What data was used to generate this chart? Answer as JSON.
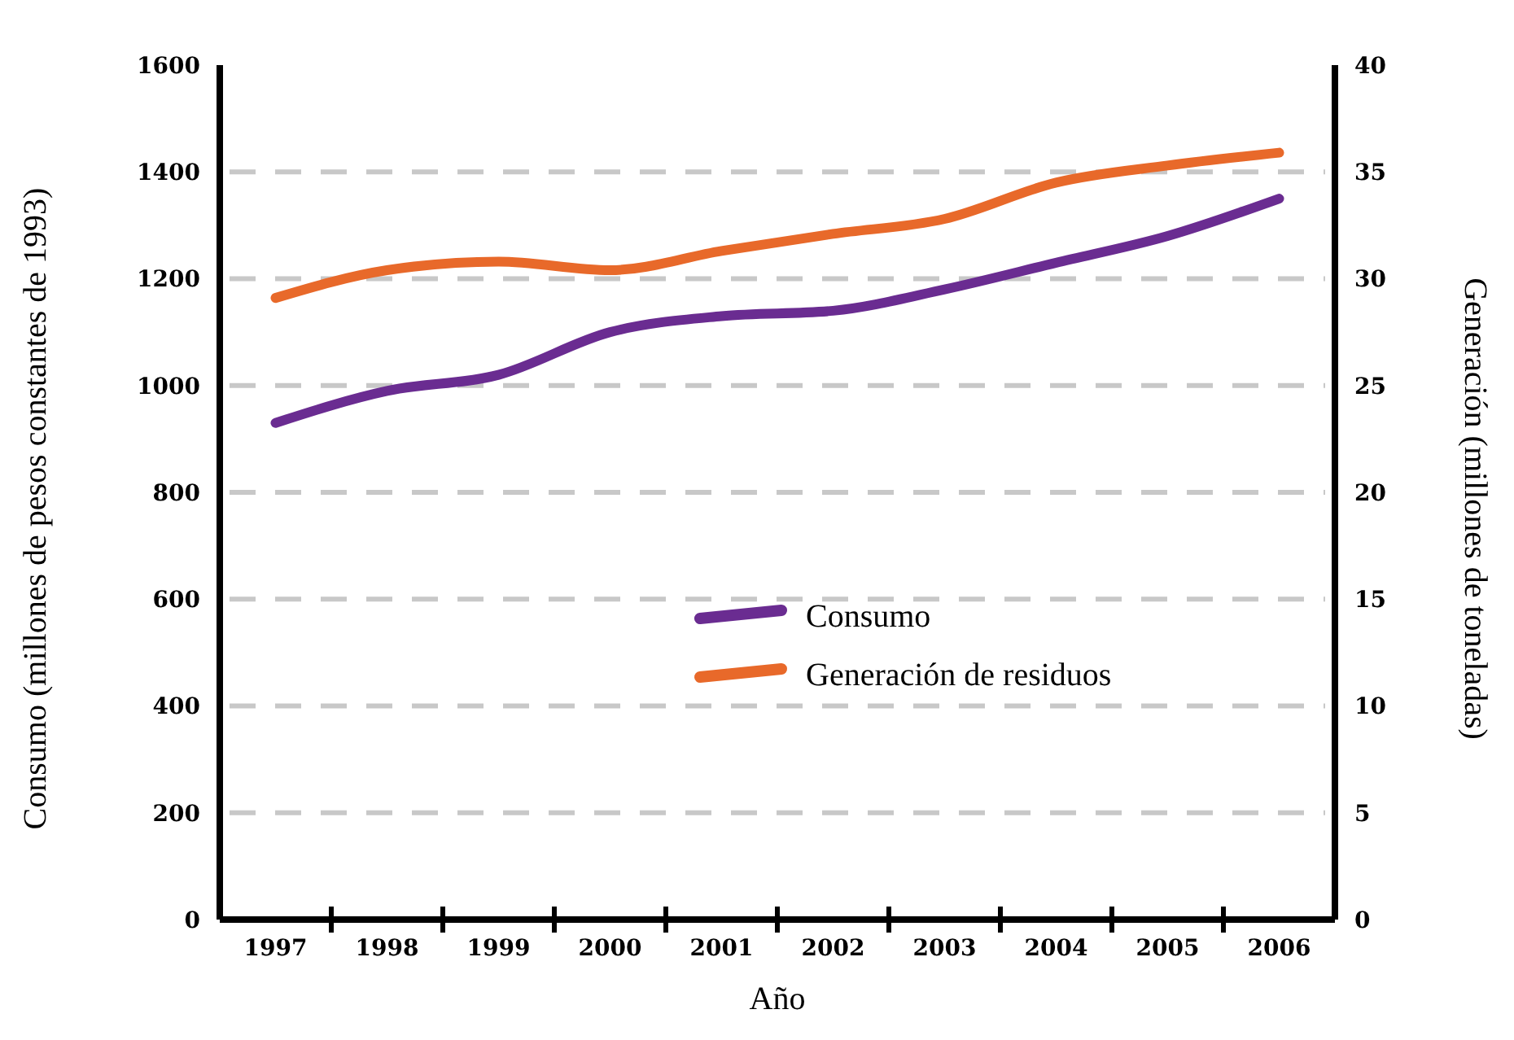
{
  "chart_data": {
    "type": "line",
    "xlabel": "Año",
    "ylabel": "Consumo (millones de pesos constantes de 1993)",
    "y2label": "Generación (millones de toneladas)",
    "categories": [
      "1997",
      "1998",
      "1999",
      "2000",
      "2001",
      "2002",
      "2003",
      "2004",
      "2005",
      "2006"
    ],
    "series": [
      {
        "name": "Consumo",
        "color": "#6a2c91",
        "values": [
          930,
          990,
          1020,
          1100,
          1130,
          1140,
          1180,
          1230,
          1280,
          1350
        ]
      },
      {
        "name": "Generación de residuos",
        "color": "#e8692a",
        "axis": "y2",
        "values": [
          29.1,
          30.4,
          30.8,
          30.4,
          31.3,
          32.1,
          32.8,
          34.5,
          35.3,
          35.9
        ]
      }
    ],
    "ylim": [
      0,
      1600
    ],
    "yticks": [
      0,
      200,
      400,
      600,
      800,
      1000,
      1200,
      1400,
      1600
    ],
    "y2lim": [
      0,
      40
    ],
    "y2ticks": [
      0,
      5,
      10,
      15,
      20,
      25,
      30,
      35,
      40
    ],
    "grid": "y",
    "legend": "center",
    "line_style": "solid"
  }
}
